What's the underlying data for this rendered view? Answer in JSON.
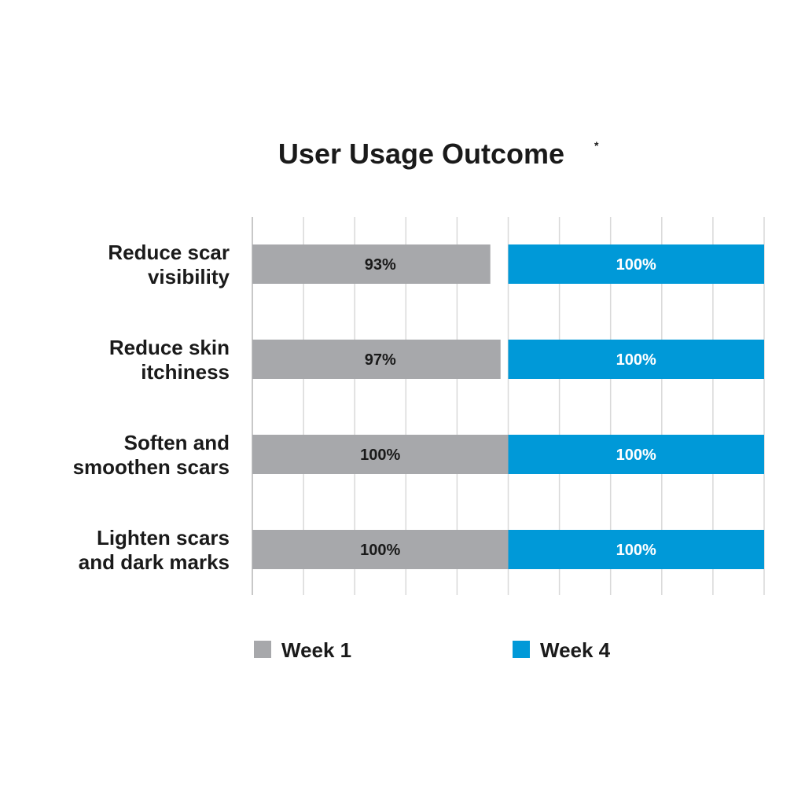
{
  "chart_data": {
    "type": "bar",
    "stacked": true,
    "orientation": "horizontal",
    "title": "User Usage Outcome",
    "title_mark": "*",
    "categories": [
      [
        "Reduce scar",
        "visibility"
      ],
      [
        "Reduce skin",
        "itchiness"
      ],
      [
        "Soften and",
        "smoothen scars"
      ],
      [
        "Lighten scars",
        "and dark marks"
      ]
    ],
    "series": [
      {
        "name": "Week 1",
        "color": "#a7a8ab",
        "label_color": "#1a1a1a",
        "values": [
          93,
          97,
          100,
          100
        ],
        "labels": [
          "93%",
          "97%",
          "100%",
          "100%"
        ]
      },
      {
        "name": "Week 4",
        "color": "#0099d8",
        "label_color": "#ffffff",
        "values": [
          100,
          100,
          100,
          100
        ],
        "labels": [
          "100%",
          "100%",
          "100%",
          "100%"
        ]
      }
    ],
    "xlim": [
      0,
      200
    ],
    "grid": true,
    "grid_color": "#d9d9d9",
    "legend_position": "bottom"
  }
}
